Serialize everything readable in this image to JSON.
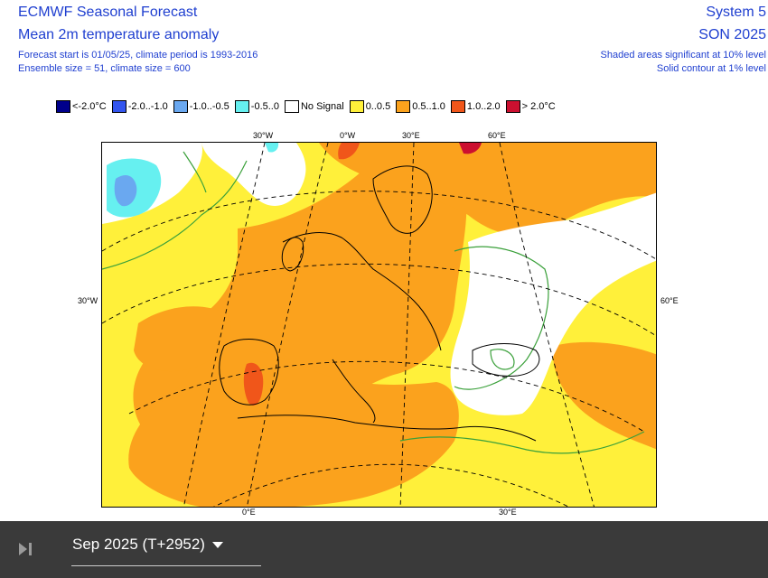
{
  "header": {
    "title": "ECMWF Seasonal Forecast",
    "subtitle": "Mean 2m temperature anomaly",
    "forecast_info": "Forecast start is 01/05/25, climate period is 1993-2016",
    "ensemble_info": "Ensemble size = 51, climate size = 600",
    "system": "System 5",
    "season": "SON 2025",
    "note_shaded": "Shaded areas significant at 10% level",
    "note_contour": "Solid contour at 1% level"
  },
  "legend": [
    {
      "label": "<-2.0°C",
      "color": "#00008b"
    },
    {
      "label": "-2.0..-1.0",
      "color": "#3355ee"
    },
    {
      "label": "-1.0..-0.5",
      "color": "#6aa8f0"
    },
    {
      "label": "-0.5..0",
      "color": "#66f0f0"
    },
    {
      "label": "No Signal",
      "color": "#ffffff"
    },
    {
      "label": "0..0.5",
      "color": "#fff03a"
    },
    {
      "label": "0.5..1.0",
      "color": "#fba21d"
    },
    {
      "label": "1.0..2.0",
      "color": "#f0561a"
    },
    {
      "label": "> 2.0°C",
      "color": "#cc1030"
    }
  ],
  "map": {
    "top_labels": [
      "30°W",
      "0°W",
      "30°E",
      "60°E"
    ],
    "left_label": "30°W",
    "right_label": "60°E",
    "bottom_labels": [
      "0°E",
      "30°E"
    ],
    "colors": {
      "ocean_fill": "#fff03a",
      "warm": "#fba21d",
      "hot": "#f0561a",
      "no_signal": "#ffffff",
      "cool": "#66f0f0",
      "cold": "#6aa8f0",
      "contour": "#3aa03a"
    }
  },
  "controls": {
    "period_label": "Sep 2025 (T+2952)",
    "skip_icon": "skip-next-icon",
    "dropdown_icon": "caret-down-icon"
  }
}
